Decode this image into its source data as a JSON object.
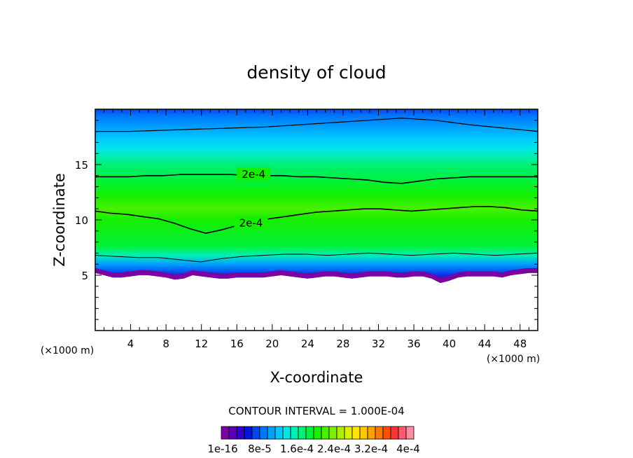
{
  "chart_data": {
    "type": "contour",
    "title": "density of cloud",
    "xlabel": "X-coordinate",
    "ylabel": "Z-coordinate",
    "x_unit": "(×1000 m)",
    "z_unit": "(×1000 m)",
    "xlim": [
      0,
      50
    ],
    "ylim": [
      0,
      20
    ],
    "x_ticks": [
      "4",
      "8",
      "12",
      "16",
      "20",
      "24",
      "28",
      "32",
      "36",
      "40",
      "44",
      "48"
    ],
    "y_ticks": [
      "5",
      "10",
      "15"
    ],
    "contour_interval_text": "CONTOUR INTERVAL = 1.000E-04",
    "contour_labels": [
      "2e-4",
      "2e-4"
    ],
    "colorbar_labels": [
      "1e-16",
      "8e-5",
      "1.6e-4",
      "2.4e-4",
      "3.2e-4",
      "4e-4"
    ],
    "colorbar_colors": [
      "#7d00a0",
      "#5a00b4",
      "#3200c8",
      "#0014dc",
      "#0046f0",
      "#0078ff",
      "#00a0ff",
      "#00c8ff",
      "#00e6e6",
      "#00f0b4",
      "#00f078",
      "#00f03c",
      "#14f000",
      "#46f000",
      "#78f000",
      "#aaf000",
      "#dcf000",
      "#ffe600",
      "#ffc800",
      "#ffa000",
      "#ff7800",
      "#ff5000",
      "#ff3232",
      "#ff5a6e",
      "#ff8ca0"
    ],
    "cloud_base_km": [
      5.2,
      5.0,
      4.8,
      4.8,
      4.9,
      5.0,
      5.0,
      4.9,
      4.8,
      4.6,
      4.7,
      5.0,
      4.9,
      4.8,
      4.7,
      4.7,
      4.8,
      4.8,
      4.8,
      4.8,
      4.9,
      5.0,
      4.9,
      4.8,
      4.7,
      4.8,
      4.9,
      4.9,
      4.8,
      4.7,
      4.8,
      4.9,
      4.9,
      4.9,
      4.8,
      4.8,
      4.9,
      4.9,
      4.7,
      4.3,
      4.5,
      4.8,
      4.9,
      4.9,
      4.9,
      4.9,
      4.8,
      5.0,
      5.1,
      5.2,
      5.2
    ],
    "contour_upper_km": [
      13.9,
      13.9,
      13.9,
      14.0,
      14.0,
      14.1,
      14.1,
      14.1,
      14.1,
      14.0,
      14.0,
      14.0,
      13.9,
      13.9,
      13.8,
      13.7,
      13.6,
      13.4,
      13.3,
      13.5,
      13.7,
      13.8,
      13.9,
      13.9,
      13.9,
      13.9,
      13.9
    ],
    "contour_lower_km": [
      10.8,
      10.6,
      10.5,
      10.3,
      10.1,
      9.7,
      9.2,
      8.8,
      9.1,
      9.5,
      9.8,
      10.1,
      10.3,
      10.5,
      10.7,
      10.8,
      10.9,
      11.0,
      11.0,
      10.9,
      10.8,
      10.9,
      11.0,
      11.1,
      11.2,
      11.2,
      11.1,
      10.9,
      10.8
    ],
    "contour_top_km": [
      18.0,
      18.0,
      18.1,
      18.2,
      18.3,
      18.4,
      18.6,
      18.8,
      19.0,
      19.2,
      19.0,
      18.6,
      18.3,
      18.0
    ],
    "contour_base_km": [
      6.8,
      6.7,
      6.6,
      6.6,
      6.4,
      6.2,
      6.5,
      6.7,
      6.8,
      6.9,
      6.9,
      6.8,
      6.9,
      7.0,
      6.9,
      6.8,
      6.9,
      7.0,
      6.9,
      6.8,
      6.9,
      7.0
    ]
  }
}
